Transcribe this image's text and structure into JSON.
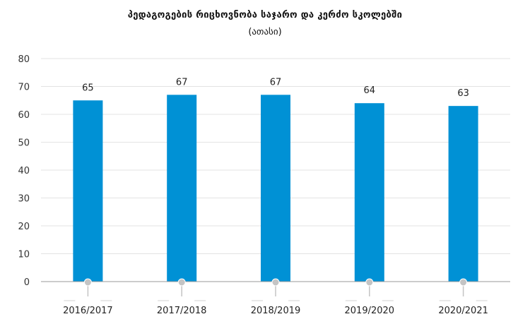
{
  "chart_data": {
    "type": "bar",
    "title": "პედაგოგების რიცხოვნობა საჯარო და კერძო სკოლებში",
    "subtitle": "(ათასი)",
    "categories": [
      "2016/2017",
      "2017/2018",
      "2018/2019",
      "2019/2020",
      "2020/2021"
    ],
    "values": [
      65,
      67,
      67,
      64,
      63
    ],
    "value_labels": [
      "65",
      "67",
      "67",
      "64",
      "63"
    ],
    "yticks": [
      "0",
      "10",
      "20",
      "30",
      "40",
      "50",
      "60",
      "70",
      "80"
    ],
    "ylim": [
      0,
      80
    ],
    "xlabel": "",
    "ylabel": "",
    "grid": true,
    "legend": "none",
    "colors": {
      "bar": "#0091d5",
      "grid": "#e3e3e3",
      "axis": "#9a9a9a",
      "marker": "#c4c4c4"
    }
  }
}
